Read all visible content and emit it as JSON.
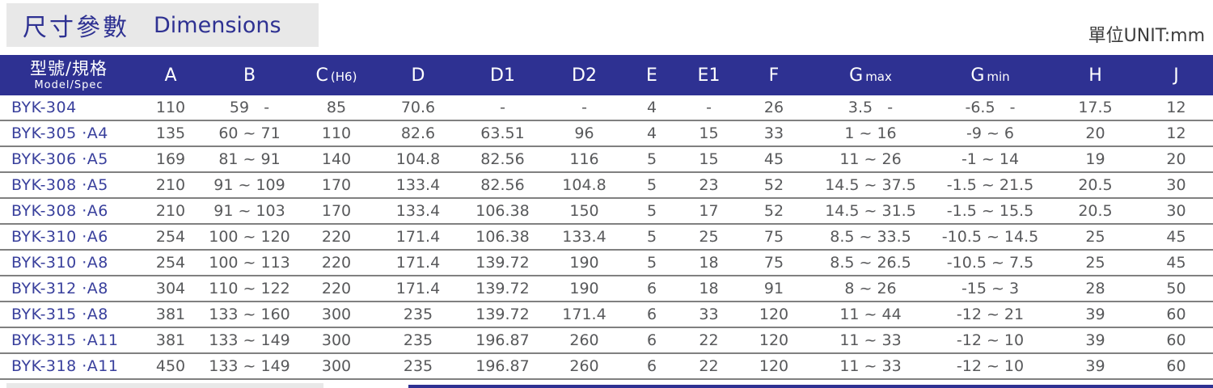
{
  "page": {
    "title_zh": "尺寸參數",
    "title_en": "Dimensions",
    "unit_label": "單位UNIT:mm"
  },
  "colors": {
    "header_navy": "#2e3192",
    "model_blue": "#383f9c",
    "value_gray": "#58595b",
    "title_box_gray": "#e8e8e8",
    "row_line_gray": "#808080"
  },
  "table": {
    "header": {
      "model_zh": "型號/規格",
      "model_en": "Model/Spec",
      "columns": [
        {
          "main": "A",
          "sub": ""
        },
        {
          "main": "B",
          "sub": ""
        },
        {
          "main": "C",
          "sub": "(H6)"
        },
        {
          "main": "D",
          "sub": ""
        },
        {
          "main": "D1",
          "sub": ""
        },
        {
          "main": "D2",
          "sub": ""
        },
        {
          "main": "E",
          "sub": ""
        },
        {
          "main": "E1",
          "sub": ""
        },
        {
          "main": "F",
          "sub": ""
        },
        {
          "main": "G",
          "sub": "max"
        },
        {
          "main": "G",
          "sub": "min"
        },
        {
          "main": "H",
          "sub": ""
        },
        {
          "main": "J",
          "sub": ""
        }
      ]
    },
    "rows": [
      {
        "model": "BYK-304",
        "values": [
          "110",
          "59   -",
          "85",
          "70.6",
          "-",
          "-",
          "4",
          "-",
          "26",
          "3.5   -",
          "-6.5   -",
          "17.5",
          "12"
        ]
      },
      {
        "model": "BYK-305 ·A4",
        "values": [
          "135",
          "60 ~ 71",
          "110",
          "82.6",
          "63.51",
          "96",
          "4",
          "15",
          "33",
          "1 ~ 16",
          "-9 ~ 6",
          "20",
          "12"
        ]
      },
      {
        "model": "BYK-306 ·A5",
        "values": [
          "169",
          "81 ~ 91",
          "140",
          "104.8",
          "82.56",
          "116",
          "5",
          "15",
          "45",
          "11 ~ 26",
          "-1 ~ 14",
          "19",
          "20"
        ]
      },
      {
        "model": "BYK-308 ·A5",
        "values": [
          "210",
          "91 ~ 109",
          "170",
          "133.4",
          "82.56",
          "104.8",
          "5",
          "23",
          "52",
          "14.5 ~ 37.5",
          "-1.5 ~ 21.5",
          "20.5",
          "30"
        ]
      },
      {
        "model": "BYK-308 ·A6",
        "values": [
          "210",
          "91 ~ 103",
          "170",
          "133.4",
          "106.38",
          "150",
          "5",
          "17",
          "52",
          "14.5 ~ 31.5",
          "-1.5 ~ 15.5",
          "20.5",
          "30"
        ]
      },
      {
        "model": "BYK-310 ·A6",
        "values": [
          "254",
          "100 ~ 120",
          "220",
          "171.4",
          "106.38",
          "133.4",
          "5",
          "25",
          "75",
          "8.5 ~ 33.5",
          "-10.5 ~ 14.5",
          "25",
          "45"
        ]
      },
      {
        "model": "BYK-310 ·A8",
        "values": [
          "254",
          "100 ~ 113",
          "220",
          "171.4",
          "139.72",
          "190",
          "5",
          "18",
          "75",
          "8.5 ~ 26.5",
          "-10.5 ~ 7.5",
          "25",
          "45"
        ]
      },
      {
        "model": "BYK-312 ·A8",
        "values": [
          "304",
          "110 ~ 122",
          "220",
          "171.4",
          "139.72",
          "190",
          "6",
          "18",
          "91",
          "8 ~ 26",
          "-15 ~ 3",
          "28",
          "50"
        ]
      },
      {
        "model": "BYK-315 ·A8",
        "values": [
          "381",
          "133 ~ 160",
          "300",
          "235",
          "139.72",
          "171.4",
          "6",
          "33",
          "120",
          "11 ~ 44",
          "-12 ~ 21",
          "39",
          "60"
        ]
      },
      {
        "model": "BYK-315 ·A11",
        "values": [
          "381",
          "133 ~ 149",
          "300",
          "235",
          "196.87",
          "260",
          "6",
          "22",
          "120",
          "11 ~ 33",
          "-12 ~ 10",
          "39",
          "60"
        ]
      },
      {
        "model": "BYK-318 ·A11",
        "values": [
          "450",
          "133 ~ 149",
          "300",
          "235",
          "196.87",
          "260",
          "6",
          "22",
          "120",
          "11 ~ 33",
          "-12 ~ 10",
          "39",
          "60"
        ]
      }
    ]
  }
}
